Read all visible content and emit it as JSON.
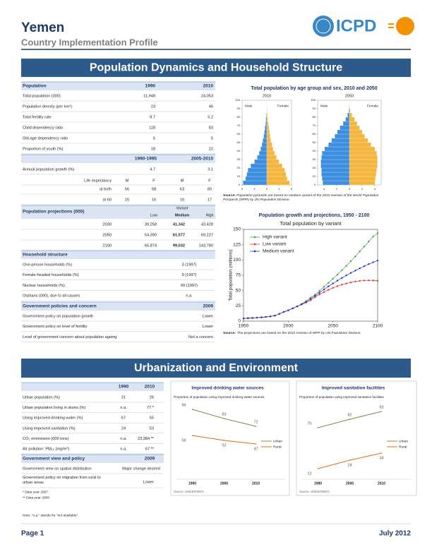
{
  "header": {
    "title": "Yemen",
    "subtitle": "Country Implementation Profile",
    "logo_text": "ICPD"
  },
  "section1": {
    "title": "Population Dynamics and Household Structure"
  },
  "population": {
    "heading": "Population",
    "years": [
      "1990",
      "2010"
    ],
    "rows": [
      [
        "Total population (000)",
        "11,948",
        "24,053"
      ],
      [
        "Population density (per km²)",
        "23",
        "46"
      ],
      [
        "Total fertility rate",
        "8.7",
        "5.2"
      ],
      [
        "Child dependency ratio",
        "118",
        "83"
      ],
      [
        "Old-age dependency ratio",
        "5",
        "5"
      ],
      [
        "Proportion of youth (%)",
        "18",
        "22"
      ]
    ]
  },
  "growth": {
    "periods": [
      "1990-1995",
      "2005-2010"
    ],
    "growth_row": [
      "Annual population growth (%)",
      "4.7",
      "3.1"
    ],
    "life_label": "Life expectancy",
    "sexes": [
      "M",
      "F",
      "M",
      "F"
    ],
    "life_rows": [
      [
        "at birth",
        "56",
        "58",
        "63",
        "65"
      ],
      [
        "at 60",
        "15",
        "16",
        "16",
        "17"
      ]
    ]
  },
  "projections": {
    "heading": "Population projections (000)",
    "variant": "Variant",
    "variants": [
      "Low",
      "Medium",
      "High"
    ],
    "rows": [
      [
        "2030",
        "39,258",
        "41,342",
        "43,428"
      ],
      [
        "2050",
        "54,390",
        "61,577",
        "69,227"
      ],
      [
        "2100",
        "65,874",
        "99,032",
        "143,780"
      ]
    ]
  },
  "household": {
    "heading": "Household structure",
    "rows": [
      [
        "One-person households (%)",
        "3 (1997)"
      ],
      [
        "Female-headed households (%)",
        "9 (1997)"
      ],
      [
        "Nuclear households (%)",
        "60 (1997)"
      ],
      [
        "Orphans (000), due to all causes",
        "n.a."
      ]
    ]
  },
  "policies": {
    "heading": "Government policies and concern",
    "year": "2009",
    "rows": [
      [
        "Government policy on population growth",
        "Lower"
      ],
      [
        "Government policy on level of fertility",
        "Lower"
      ],
      [
        "Level of government concern about population ageing",
        "Not a concern"
      ]
    ]
  },
  "pyramid_chart": {
    "type": "pyramid",
    "title": "Total population by age group and sex, 2010 and 2050",
    "male_label": "Male",
    "female_label": "Female",
    "male_color": "#3d8ee0",
    "female_color": "#f4b63f",
    "age_start": [
      0,
      5,
      10,
      15,
      20,
      25,
      30,
      35,
      40,
      45,
      50,
      55,
      60,
      65,
      70,
      75,
      80,
      85,
      90,
      95
    ],
    "ylim": [
      0,
      100
    ],
    "yticks": [
      0,
      10,
      20,
      30,
      40,
      50,
      60,
      70,
      80,
      90,
      100
    ],
    "pyramids": [
      {
        "label": "2010",
        "xlim": [
          -8,
          8
        ],
        "xticks": [
          {
            "value": -8,
            "label": "8"
          },
          {
            "value": -4,
            "label": "4"
          },
          0,
          4,
          8
        ],
        "male": [
          7.7,
          6.9,
          6.5,
          6.1,
          5.2,
          4.0,
          3.1,
          2.5,
          2.0,
          1.6,
          1.3,
          1.0,
          0.8,
          0.6,
          0.4,
          0.3,
          0.15,
          0.06,
          0.02,
          0.01
        ],
        "female": [
          7.4,
          6.6,
          6.2,
          5.8,
          5.0,
          3.9,
          3.1,
          2.5,
          2.0,
          1.7,
          1.3,
          1.1,
          0.9,
          0.7,
          0.5,
          0.3,
          0.18,
          0.08,
          0.03,
          0.01
        ]
      },
      {
        "label": "2050",
        "xlim": [
          -5,
          5
        ],
        "xticks": [
          {
            "value": -4,
            "label": "4"
          },
          {
            "value": -2,
            "label": "2"
          },
          0,
          2,
          4
        ],
        "male": [
          4.2,
          4.3,
          4.4,
          4.4,
          4.5,
          4.5,
          4.4,
          4.3,
          3.9,
          3.3,
          2.8,
          2.3,
          1.9,
          1.5,
          1.0,
          0.6,
          0.3,
          0.1,
          0.03,
          0.01
        ],
        "female": [
          4.0,
          4.1,
          4.2,
          4.3,
          4.4,
          4.4,
          4.4,
          4.3,
          4.0,
          3.4,
          2.9,
          2.4,
          2.0,
          1.6,
          1.2,
          0.8,
          0.4,
          0.15,
          0.05,
          0.01
        ]
      }
    ],
    "source_label": "Source:",
    "source": "Population pyramids are based on medium variant of the 2010 revision of the World Population Prospects (WPP) by UN Population Division."
  },
  "growth_chart": {
    "type": "line",
    "title": "Population growth and projections, 1950 - 2100",
    "subtitle": "Total population by variant",
    "ylabel": "Total population (millions)",
    "xlim": [
      1950,
      2100
    ],
    "xticks": [
      1950,
      2000,
      2050,
      2100
    ],
    "ylim": [
      0,
      150
    ],
    "yticks": [
      0,
      25,
      50,
      75,
      100,
      125,
      150
    ],
    "legend": "upper left",
    "x": [
      1950,
      1955,
      1960,
      1965,
      1970,
      1975,
      1980,
      1985,
      1990,
      1995,
      2000,
      2005,
      2010,
      2015,
      2020,
      2025,
      2030,
      2035,
      2040,
      2045,
      2050,
      2055,
      2060,
      2065,
      2070,
      2075,
      2080,
      2085,
      2090,
      2095,
      2100
    ],
    "series": [
      {
        "name": "High variant",
        "color": "#4aa14a",
        "values": [
          4.3,
          4.8,
          5.2,
          5.7,
          6.2,
          6.9,
          7.7,
          9.0,
          11.9,
          15.0,
          17.7,
          20.9,
          24.1,
          28.1,
          32.8,
          38.4,
          43.4,
          49.6,
          56.2,
          62.8,
          69.2,
          76.0,
          83.1,
          90.4,
          98.0,
          105.8,
          113.8,
          121.9,
          130.1,
          138.2,
          143.8
        ]
      },
      {
        "name": "Low variant",
        "color": "#e03a2f",
        "values": [
          4.3,
          4.8,
          5.2,
          5.7,
          6.2,
          6.9,
          7.7,
          9.0,
          11.9,
          15.0,
          17.7,
          20.9,
          24.1,
          27.1,
          30.4,
          34.1,
          39.3,
          43.6,
          47.5,
          51.2,
          54.4,
          57.2,
          59.6,
          61.6,
          63.3,
          64.7,
          65.7,
          66.4,
          66.7,
          66.5,
          65.9
        ]
      },
      {
        "name": "Medium variant",
        "color": "#1f2fd0",
        "values": [
          4.3,
          4.8,
          5.2,
          5.7,
          6.2,
          6.9,
          7.7,
          9.0,
          11.9,
          15.0,
          17.7,
          20.9,
          24.1,
          27.6,
          31.6,
          36.2,
          41.3,
          46.6,
          51.8,
          56.9,
          61.6,
          66.2,
          70.6,
          74.8,
          78.8,
          82.6,
          86.3,
          89.8,
          93.2,
          96.3,
          99.0
        ]
      }
    ],
    "source_label": "Source:",
    "source": "The projections are based on the 2010 revision of WPP by UN Population Division."
  },
  "section2": {
    "title": "Urbanization and Environment"
  },
  "urban_table": {
    "years": [
      "1990",
      "2010"
    ],
    "rows": [
      [
        "Urban population (%)",
        "21",
        "26"
      ],
      [
        "Urban population living in slums (%)",
        "n.a.",
        "77 *"
      ],
      [
        "Using improved drinking water (%)",
        "67",
        "55"
      ],
      [
        "Using improved sanitation (%)",
        "24",
        "53"
      ],
      [
        "CO₂ emmission (000 tons)",
        "n.a.",
        "23,384 **"
      ],
      [
        "Air pollution: PM₁₀ (mg/m³)",
        "n.a.",
        "67 **"
      ]
    ]
  },
  "urban_policy": {
    "heading": "Government view and policy",
    "year": "2009",
    "rows": [
      [
        "Government view on spatial distribution",
        "Major change desired"
      ],
      [
        "Government policy on migration from rural to urban areas",
        "Lower"
      ]
    ]
  },
  "footnotes": [
    "* Data year 2007",
    "** Data year 2008"
  ],
  "note": "Note: \"n.a.\" stands for \"not available\".",
  "water_chart": {
    "type": "line",
    "title": "Improved drinking water sources",
    "subtitle": "Proportion of population using improved drinking water sources",
    "categories": [
      "1990",
      "2000",
      "2010"
    ],
    "ylim": [
      0,
      100
    ],
    "series": [
      {
        "name": "Urban",
        "color": "#77933c",
        "values": [
          96,
          83,
          72
        ]
      },
      {
        "name": "Rural",
        "color": "#e46c0a",
        "values": [
          59,
          52,
          47
        ]
      }
    ],
    "source": "Source: UNICEF/WHO"
  },
  "sanitation_chart": {
    "type": "line",
    "title": "Improved sanitation facilities",
    "subtitle": "Proportion of population using improved sanitation facilities",
    "categories": [
      "1990",
      "2000",
      "2010"
    ],
    "ylim": [
      0,
      100
    ],
    "series": [
      {
        "name": "Urban",
        "color": "#77933c",
        "values": [
          70,
          82,
          93
        ]
      },
      {
        "name": "Rural",
        "color": "#e46c0a",
        "values": [
          12,
          24,
          34
        ]
      }
    ],
    "source": "Source: UNICEF/WHO"
  },
  "footer": {
    "page": "Page 1",
    "date": "July 2012"
  }
}
